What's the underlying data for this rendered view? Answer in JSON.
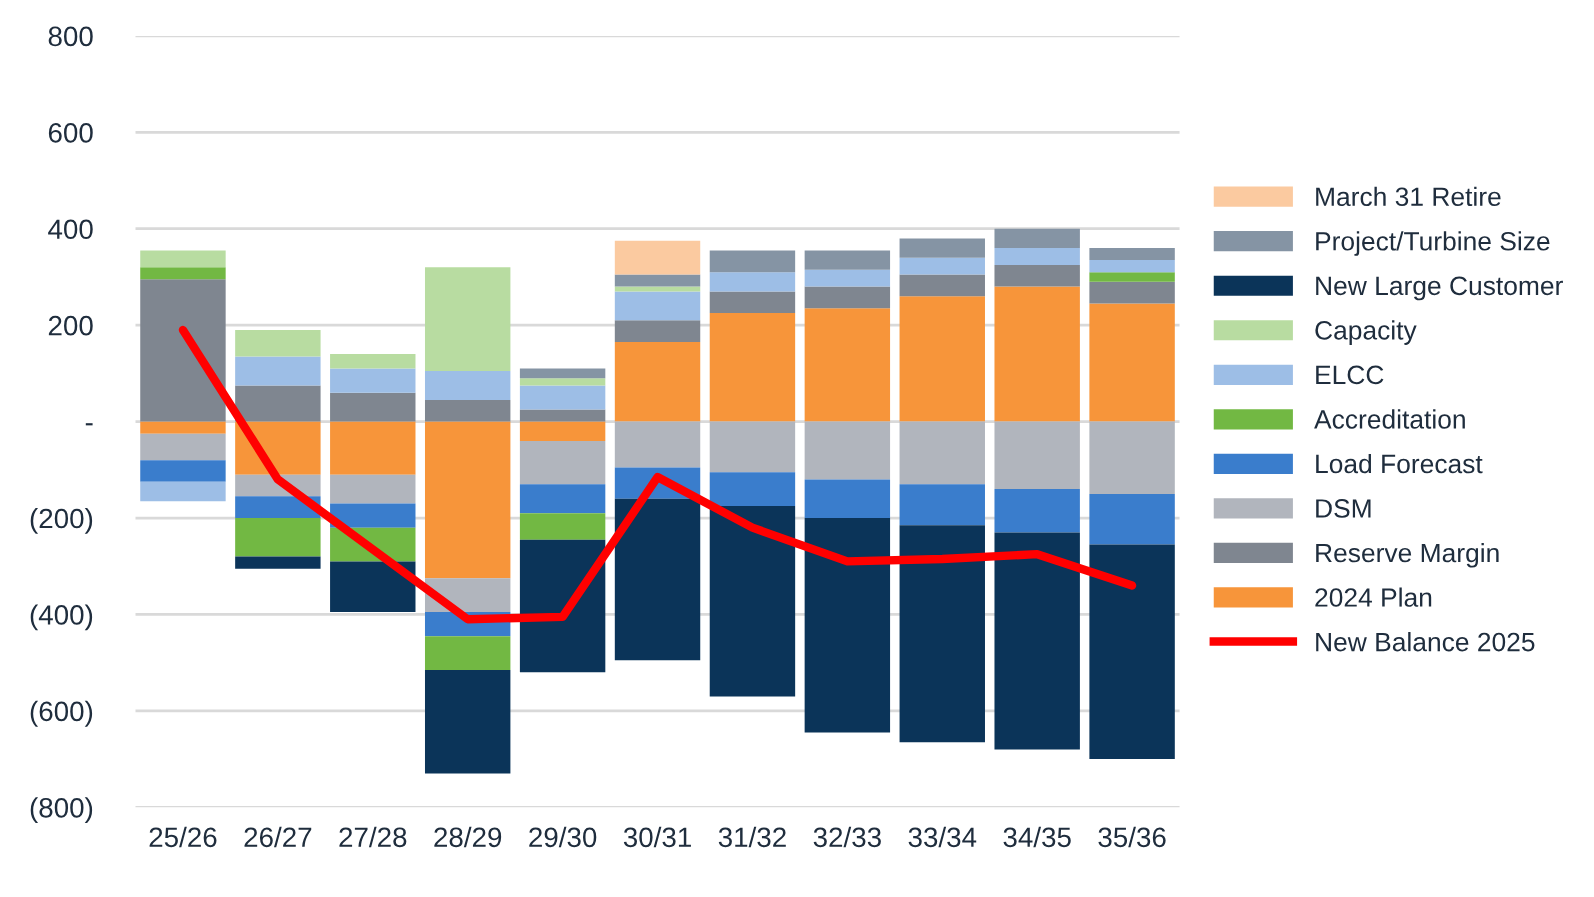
{
  "chart_data": {
    "type": "bar",
    "stacked": true,
    "categories": [
      "25/26",
      "26/27",
      "27/28",
      "28/29",
      "29/30",
      "30/31",
      "31/32",
      "32/33",
      "33/34",
      "34/35",
      "35/36"
    ],
    "series": [
      {
        "name": "2024 Plan",
        "color": "#f7953a",
        "values": [
          -25,
          -110,
          -110,
          -325,
          -40,
          165,
          225,
          235,
          260,
          280,
          245
        ]
      },
      {
        "name": "Reserve Margin",
        "color": "#7f8690",
        "values": [
          295,
          75,
          60,
          45,
          25,
          45,
          45,
          45,
          45,
          45,
          45
        ]
      },
      {
        "name": "DSM",
        "color": "#b1b5bd",
        "values": [
          -55,
          -45,
          -60,
          -70,
          -90,
          -95,
          -105,
          -120,
          -130,
          -140,
          -150
        ]
      },
      {
        "name": "Load Forecast",
        "color": "#3a7dcc",
        "values": [
          -45,
          -45,
          -50,
          -50,
          -60,
          -65,
          -70,
          -80,
          -85,
          -90,
          -105
        ]
      },
      {
        "name": "Accreditation",
        "color": "#72b843",
        "values": [
          25,
          -80,
          -70,
          -70,
          -55,
          null,
          null,
          null,
          null,
          null,
          20
        ]
      },
      {
        "name": "ELCC",
        "color": "#9dbee6",
        "values": [
          -40,
          60,
          50,
          60,
          50,
          60,
          40,
          35,
          35,
          35,
          25
        ]
      },
      {
        "name": "Capacity",
        "color": "#b8dca1",
        "values": [
          35,
          55,
          30,
          215,
          15,
          10,
          null,
          null,
          null,
          null,
          null
        ]
      },
      {
        "name": "New Large Customer",
        "color": "#0b3459",
        "values": [
          null,
          -25,
          -105,
          -215,
          -275,
          -335,
          -395,
          -445,
          -450,
          -450,
          -445
        ]
      },
      {
        "name": "Project/Turbine Size",
        "color": "#8594a4",
        "values": [
          null,
          null,
          null,
          null,
          20,
          25,
          45,
          40,
          40,
          40,
          25
        ]
      },
      {
        "name": "March 31 Retire",
        "color": "#fbcaa0",
        "values": [
          null,
          null,
          null,
          null,
          null,
          70,
          null,
          null,
          null,
          null,
          null
        ]
      },
      {
        "name": "New Balance 2025",
        "type": "line",
        "color": "#ff0000",
        "values": [
          190,
          -120,
          -265,
          -410,
          -405,
          -115,
          -220,
          -290,
          -285,
          -275,
          -340
        ]
      }
    ],
    "ylim": [
      -800,
      800
    ],
    "yticks": [
      {
        "value": -800,
        "label": "(800)"
      },
      {
        "value": -600,
        "label": "(600)"
      },
      {
        "value": -400,
        "label": "(400)"
      },
      {
        "value": -200,
        "label": "(200)"
      },
      {
        "value": 0,
        "label": "-"
      },
      200,
      400,
      600,
      800
    ],
    "grid": "y",
    "legend": "right",
    "marker": "none"
  }
}
